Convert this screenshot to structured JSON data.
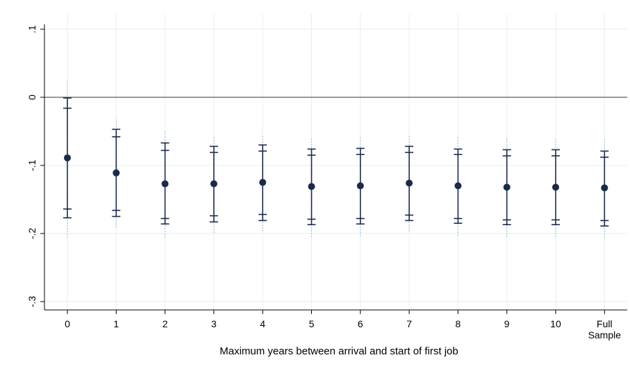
{
  "chart_data": {
    "type": "scatter",
    "subtype": "coefficient-plot",
    "title": "",
    "xlabel": "Maximum years between arrival and start of first job",
    "ylabel": "",
    "categories": [
      [
        "0"
      ],
      [
        "1"
      ],
      [
        "2"
      ],
      [
        "3"
      ],
      [
        "4"
      ],
      [
        "5"
      ],
      [
        "6"
      ],
      [
        "7"
      ],
      [
        "8"
      ],
      [
        "9"
      ],
      [
        "10"
      ],
      [
        "Full",
        "Sample"
      ]
    ],
    "yticks": [
      ".1",
      "0",
      "-.1",
      "-.2",
      "-.3"
    ],
    "ytick_values": [
      0.1,
      0,
      -0.1,
      -0.2,
      -0.3
    ],
    "ylim": [
      -0.31,
      0.105
    ],
    "reference_line_y": 0,
    "grid": true,
    "colors": {
      "marker": "#1a2a4a",
      "ci": "#1a2a4a",
      "ci_outer": "#8fb8cc",
      "grid": "#e6eef2",
      "reference": "#333333"
    },
    "series": [
      {
        "estimates": [
          -0.089,
          -0.111,
          -0.127,
          -0.127,
          -0.125,
          -0.131,
          -0.13,
          -0.126,
          -0.13,
          -0.132,
          -0.132,
          -0.133
        ],
        "ci_inner": [
          [
            -0.164,
            -0.016
          ],
          [
            -0.166,
            -0.058
          ],
          [
            -0.178,
            -0.078
          ],
          [
            -0.174,
            -0.081
          ],
          [
            -0.172,
            -0.079
          ],
          [
            -0.179,
            -0.085
          ],
          [
            -0.178,
            -0.084
          ],
          [
            -0.173,
            -0.081
          ],
          [
            -0.178,
            -0.084
          ],
          [
            -0.18,
            -0.086
          ],
          [
            -0.18,
            -0.086
          ],
          [
            -0.181,
            -0.088
          ]
        ],
        "ci_95": [
          [
            -0.177,
            -0.001
          ],
          [
            -0.175,
            -0.047
          ],
          [
            -0.186,
            -0.067
          ],
          [
            -0.183,
            -0.072
          ],
          [
            -0.181,
            -0.07
          ],
          [
            -0.187,
            -0.076
          ],
          [
            -0.186,
            -0.075
          ],
          [
            -0.181,
            -0.072
          ],
          [
            -0.185,
            -0.076
          ],
          [
            -0.187,
            -0.077
          ],
          [
            -0.187,
            -0.077
          ],
          [
            -0.189,
            -0.079
          ]
        ],
        "ci_outer": [
          [
            -0.206,
            0.026
          ],
          [
            -0.191,
            -0.031
          ],
          [
            -0.206,
            -0.048
          ],
          [
            -0.199,
            -0.057
          ],
          [
            -0.197,
            -0.055
          ],
          [
            -0.205,
            -0.059
          ],
          [
            -0.204,
            -0.057
          ],
          [
            -0.197,
            -0.056
          ],
          [
            -0.203,
            -0.058
          ],
          [
            -0.205,
            -0.06
          ],
          [
            -0.205,
            -0.06
          ],
          [
            -0.206,
            -0.061
          ]
        ]
      }
    ]
  }
}
